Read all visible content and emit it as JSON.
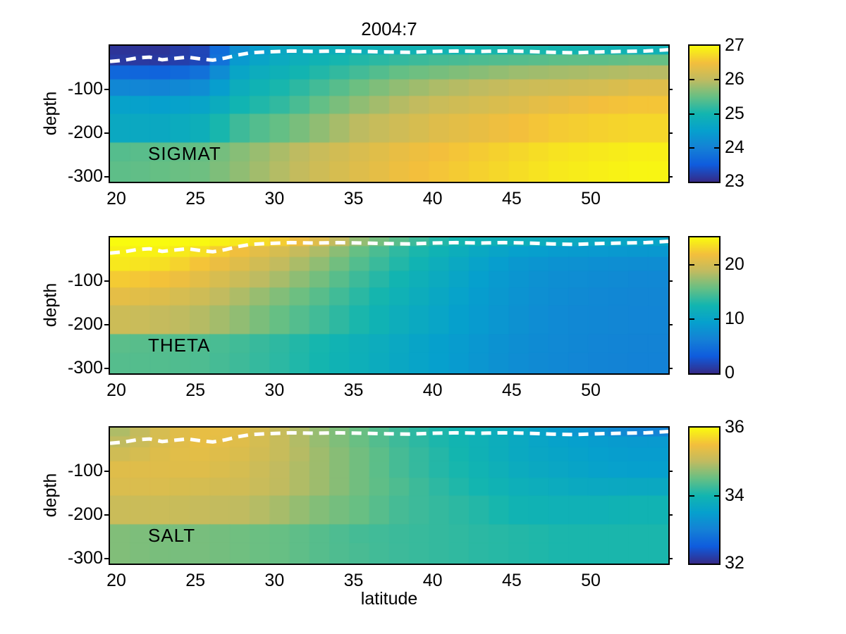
{
  "figure": {
    "title": "2004:7",
    "xlabel": "latitude",
    "ylabel": "depth",
    "background_color": "#ffffff",
    "text_color": "#000000",
    "mld_line_color": "#ffffff",
    "axes": {
      "lat_range": [
        19.6,
        54.9
      ],
      "depth_range": [
        0,
        -312
      ],
      "xticks": [
        20,
        25,
        30,
        35,
        40,
        45,
        50
      ],
      "yticks": [
        -100,
        -200,
        -300
      ]
    },
    "colormap_parula_stops": [
      [
        0.0,
        "#352a87"
      ],
      [
        0.125,
        "#0f5cdd"
      ],
      [
        0.25,
        "#1481d6"
      ],
      [
        0.375,
        "#06a0cd"
      ],
      [
        0.5,
        "#12b5b0"
      ],
      [
        0.625,
        "#66bf84"
      ],
      [
        0.75,
        "#c0bb60"
      ],
      [
        0.875,
        "#f3bf3c"
      ],
      [
        1.0,
        "#f9fb0e"
      ]
    ],
    "mixed_layer_line": [
      [
        19.6,
        -36
      ],
      [
        20.5,
        -33
      ],
      [
        21.3,
        -28
      ],
      [
        22.1,
        -26
      ],
      [
        22.9,
        -32
      ],
      [
        23.7,
        -29
      ],
      [
        24.5,
        -26
      ],
      [
        25.3,
        -30
      ],
      [
        26.1,
        -33
      ],
      [
        26.9,
        -28
      ],
      [
        27.7,
        -21
      ],
      [
        28.5,
        -16
      ],
      [
        29.5,
        -14
      ],
      [
        31,
        -12
      ],
      [
        32.5,
        -13
      ],
      [
        34,
        -12
      ],
      [
        35.5,
        -13
      ],
      [
        37,
        -14
      ],
      [
        38.5,
        -15
      ],
      [
        40,
        -13
      ],
      [
        41.5,
        -12
      ],
      [
        43,
        -13
      ],
      [
        44.5,
        -12
      ],
      [
        46,
        -13
      ],
      [
        47.5,
        -15
      ],
      [
        49,
        -16
      ],
      [
        50.5,
        -14
      ],
      [
        52,
        -13
      ],
      [
        53.5,
        -12
      ],
      [
        54.9,
        -9
      ]
    ]
  },
  "chart_data": [
    {
      "type": "heatmap",
      "label": "SIGMAT",
      "value_range": [
        23,
        27
      ],
      "colorbar_ticks": [
        23,
        24,
        25,
        26,
        27
      ],
      "lat_centers": [
        20.5,
        23,
        25.5,
        28,
        30.5,
        33,
        35.5,
        38,
        40.5,
        43,
        45.5,
        48,
        50.5,
        53
      ],
      "depth_edges": [
        0,
        -20,
        -45,
        -77,
        -115,
        -156,
        -222,
        -265,
        -312
      ],
      "values": [
        [
          23.1,
          23.1,
          23.3,
          24.3,
          24.7,
          24.8,
          24.85,
          24.9,
          24.95,
          25.0,
          25.05,
          25.0,
          24.95,
          24.9
        ],
        [
          23.15,
          23.15,
          23.3,
          24.5,
          24.75,
          24.95,
          25.1,
          25.2,
          25.3,
          25.35,
          25.4,
          25.45,
          25.45,
          25.5
        ],
        [
          23.65,
          23.6,
          23.8,
          24.7,
          24.9,
          25.1,
          25.3,
          25.5,
          25.6,
          25.7,
          25.8,
          25.85,
          25.9,
          25.95
        ],
        [
          24.1,
          24.05,
          24.2,
          24.85,
          25.05,
          25.3,
          25.55,
          25.75,
          25.9,
          26.0,
          26.1,
          26.15,
          26.2,
          26.3
        ],
        [
          24.55,
          24.5,
          24.6,
          25.0,
          25.2,
          25.5,
          25.75,
          25.95,
          26.1,
          26.2,
          26.3,
          26.4,
          26.5,
          26.55
        ],
        [
          24.7,
          24.7,
          24.85,
          25.3,
          25.5,
          25.75,
          26.0,
          26.15,
          26.3,
          26.4,
          26.5,
          26.6,
          26.65,
          26.7
        ],
        [
          25.4,
          25.45,
          25.5,
          25.7,
          25.9,
          26.1,
          26.25,
          26.4,
          26.5,
          26.6,
          26.7,
          26.8,
          26.85,
          26.9
        ],
        [
          25.45,
          25.5,
          25.55,
          25.75,
          25.95,
          26.15,
          26.3,
          26.45,
          26.55,
          26.65,
          26.75,
          26.85,
          26.9,
          26.95
        ]
      ]
    },
    {
      "type": "heatmap",
      "label": "THETA",
      "value_range": [
        0,
        25
      ],
      "colorbar_ticks": [
        0,
        10,
        20
      ],
      "lat_centers": [
        20.5,
        23,
        25.5,
        28,
        30.5,
        33,
        35.5,
        38,
        40.5,
        43,
        45.5,
        48,
        50.5,
        53
      ],
      "depth_edges": [
        0,
        -20,
        -45,
        -77,
        -115,
        -156,
        -222,
        -265,
        -312
      ],
      "values": [
        [
          25.0,
          25.0,
          24.8,
          24.0,
          22.5,
          20.5,
          17.0,
          15.0,
          13.0,
          12.0,
          11.5,
          11.0,
          10.5,
          10.0
        ],
        [
          24.5,
          24.5,
          23.5,
          21.5,
          20.0,
          18.0,
          15.5,
          13.5,
          12.0,
          10.5,
          9.5,
          9.0,
          8.8,
          8.6
        ],
        [
          24.0,
          23.5,
          22.0,
          20.5,
          18.8,
          17.0,
          14.8,
          13.0,
          11.3,
          9.8,
          8.5,
          8.0,
          7.7,
          7.5
        ],
        [
          22.5,
          22.0,
          20.8,
          19.3,
          17.8,
          16.0,
          14.0,
          12.3,
          10.8,
          9.3,
          8.2,
          7.6,
          7.3,
          7.0
        ],
        [
          21.0,
          20.5,
          19.5,
          18.0,
          16.5,
          15.0,
          13.3,
          11.8,
          10.4,
          9.0,
          8.0,
          7.3,
          7.0,
          6.8
        ],
        [
          19.5,
          19.0,
          18.3,
          17.0,
          15.5,
          14.2,
          12.7,
          11.3,
          10.0,
          8.8,
          7.8,
          7.1,
          6.9,
          6.7
        ],
        [
          15.2,
          15.0,
          14.8,
          14.2,
          13.5,
          12.6,
          11.6,
          10.5,
          9.4,
          8.4,
          7.5,
          7.0,
          6.7,
          6.5
        ],
        [
          15.0,
          14.9,
          14.7,
          14.1,
          13.4,
          12.5,
          11.5,
          10.4,
          9.3,
          8.3,
          7.4,
          6.9,
          6.6,
          6.4
        ]
      ]
    },
    {
      "type": "heatmap",
      "label": "SALT",
      "value_range": [
        32,
        36
      ],
      "colorbar_ticks": [
        32,
        34,
        36
      ],
      "lat_centers": [
        20.5,
        23,
        25.5,
        28,
        30.5,
        33,
        35.5,
        38,
        40.5,
        43,
        45.5,
        48,
        50.5,
        53
      ],
      "depth_edges": [
        0,
        -20,
        -45,
        -77,
        -115,
        -156,
        -222,
        -265,
        -312
      ],
      "values": [
        [
          34.9,
          35.25,
          35.4,
          35.35,
          35.05,
          34.75,
          34.5,
          34.25,
          34.05,
          33.9,
          33.7,
          33.45,
          33.25,
          33.05
        ],
        [
          35.0,
          35.25,
          35.4,
          35.3,
          35.05,
          34.75,
          34.5,
          34.25,
          34.05,
          33.9,
          33.7,
          33.55,
          33.45,
          33.4
        ],
        [
          35.15,
          35.3,
          35.35,
          35.25,
          35.05,
          34.8,
          34.55,
          34.3,
          34.1,
          33.9,
          33.7,
          33.6,
          33.5,
          33.45
        ],
        [
          35.3,
          35.3,
          35.3,
          35.2,
          35.0,
          34.8,
          34.55,
          34.3,
          34.1,
          33.95,
          33.75,
          33.65,
          33.55,
          33.5
        ],
        [
          35.25,
          35.25,
          35.2,
          35.15,
          35.0,
          34.8,
          34.55,
          34.35,
          34.15,
          34.0,
          33.85,
          33.75,
          33.7,
          33.7
        ],
        [
          35.1,
          35.1,
          35.05,
          35.0,
          34.85,
          34.65,
          34.5,
          34.3,
          34.2,
          34.1,
          33.95,
          33.9,
          33.9,
          33.95
        ],
        [
          34.65,
          34.6,
          34.6,
          34.55,
          34.5,
          34.4,
          34.3,
          34.25,
          34.2,
          34.15,
          34.1,
          34.05,
          34.05,
          34.05
        ],
        [
          34.65,
          34.6,
          34.6,
          34.55,
          34.5,
          34.4,
          34.32,
          34.25,
          34.2,
          34.15,
          34.1,
          34.05,
          34.05,
          34.05
        ]
      ]
    }
  ]
}
